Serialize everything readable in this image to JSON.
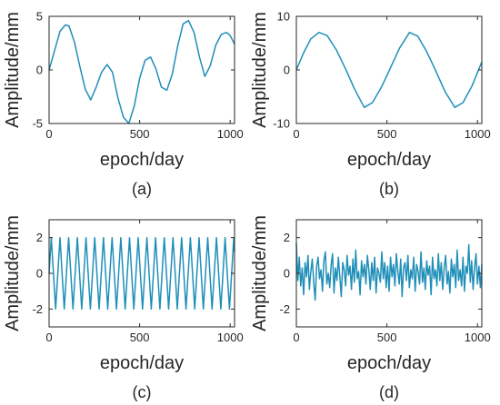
{
  "colors": {
    "series": "#1f8fb8",
    "axis": "#262626"
  },
  "chart_data": [
    {
      "type": "line",
      "panel_label": "(a)",
      "xlabel": "epoch/day",
      "ylabel": "Amplitude/mm",
      "xlim": [
        0,
        1024
      ],
      "ylim": [
        -5,
        5
      ],
      "xticks": [
        0,
        500,
        1000
      ],
      "yticks": [
        -5,
        0,
        5
      ],
      "grid": false,
      "series": [
        {
          "x": [
            0,
            30,
            60,
            90,
            110,
            140,
            170,
            200,
            230,
            260,
            290,
            320,
            350,
            380,
            410,
            440,
            470,
            500,
            530,
            560,
            590,
            620,
            650,
            680,
            710,
            740,
            770,
            800,
            830,
            860,
            890,
            920,
            950,
            980,
            1000,
            1024
          ],
          "y": [
            0,
            1.8,
            3.6,
            4.2,
            4.1,
            2.6,
            0.3,
            -1.8,
            -2.8,
            -1.6,
            -0.2,
            0.5,
            -0.2,
            -2.6,
            -4.4,
            -5.0,
            -3.4,
            -0.8,
            0.9,
            1.2,
            0.1,
            -1.6,
            -1.9,
            -0.4,
            2.2,
            4.3,
            4.6,
            3.5,
            1.2,
            -0.6,
            0.4,
            2.3,
            3.3,
            3.5,
            3.2,
            2.4
          ]
        }
      ]
    },
    {
      "type": "line",
      "panel_label": "(b)",
      "xlabel": "epoch/day",
      "ylabel": "Amplitude/mm",
      "xlim": [
        0,
        1024
      ],
      "ylim": [
        -10,
        10
      ],
      "xticks": [
        0,
        500,
        1000
      ],
      "yticks": [
        -10,
        0,
        10
      ],
      "grid": false,
      "series": [
        {
          "x": [
            0,
            40,
            80,
            125,
            170,
            220,
            270,
            320,
            375,
            420,
            470,
            520,
            570,
            625,
            670,
            720,
            770,
            820,
            875,
            920,
            970,
            1024
          ],
          "y": [
            0,
            3.2,
            5.8,
            7.0,
            6.4,
            3.8,
            0.3,
            -3.5,
            -7.0,
            -6.1,
            -3.2,
            0.4,
            4.1,
            7.0,
            6.3,
            3.4,
            -0.2,
            -4.0,
            -7.0,
            -6.1,
            -3.0,
            1.5
          ]
        }
      ]
    },
    {
      "type": "line",
      "panel_label": "(c)",
      "xlabel": "epoch/day",
      "ylabel": "Amplitude/mm",
      "xlim": [
        0,
        1024
      ],
      "ylim": [
        -3,
        3
      ],
      "xticks": [
        0,
        500,
        1000
      ],
      "yticks": [
        -2,
        0,
        2
      ],
      "grid": false,
      "series": [
        {
          "x": [
            0,
            12,
            24,
            36,
            48,
            60,
            72,
            84,
            96,
            108,
            120,
            132,
            144,
            156,
            168,
            180,
            192,
            204,
            216,
            228,
            240,
            252,
            264,
            276,
            288,
            300,
            312,
            324,
            336,
            348,
            360,
            372,
            384,
            396,
            408,
            420,
            432,
            444,
            456,
            468,
            480,
            492,
            504,
            516,
            528,
            540,
            552,
            564,
            576,
            588,
            600,
            612,
            624,
            636,
            648,
            660,
            672,
            684,
            696,
            708,
            720,
            732,
            744,
            756,
            768,
            780,
            792,
            804,
            816,
            828,
            840,
            852,
            864,
            876,
            888,
            900,
            912,
            924,
            936,
            948,
            960,
            972,
            984,
            996,
            1008,
            1020,
            1024
          ],
          "y": [
            0,
            2,
            0,
            -2,
            0,
            2,
            0,
            -2,
            0,
            2,
            0,
            -2,
            0,
            2,
            0,
            -2,
            0,
            2,
            0,
            -2,
            0,
            2,
            0,
            -2,
            0,
            2,
            0,
            -2,
            0,
            2,
            0,
            -2,
            0,
            2,
            0,
            -2,
            0,
            2,
            0,
            -2,
            0,
            2,
            0,
            -2,
            0,
            2,
            0,
            -2,
            0,
            2,
            0,
            -2,
            0,
            2,
            0,
            -2,
            0,
            2,
            0,
            -2,
            0,
            2,
            0,
            -2,
            0,
            2,
            0,
            -2,
            0,
            2,
            0,
            -2,
            0,
            2,
            0,
            -2,
            0,
            2,
            0,
            -2,
            0,
            2,
            0,
            -2,
            0,
            2,
            1.2
          ]
        }
      ]
    },
    {
      "type": "line",
      "panel_label": "(d)",
      "xlabel": "epoch/day",
      "ylabel": "Amplitude/mm",
      "xlim": [
        0,
        1024
      ],
      "ylim": [
        -3,
        3
      ],
      "xticks": [
        0,
        500,
        1000
      ],
      "yticks": [
        -2,
        0,
        2
      ],
      "grid": false,
      "series": [
        {
          "x": [
            0,
            8,
            16,
            24,
            32,
            40,
            48,
            56,
            64,
            72,
            80,
            88,
            96,
            104,
            112,
            120,
            128,
            136,
            144,
            152,
            160,
            168,
            176,
            184,
            192,
            200,
            208,
            216,
            224,
            232,
            240,
            248,
            256,
            264,
            272,
            280,
            288,
            296,
            304,
            312,
            320,
            328,
            336,
            344,
            352,
            360,
            368,
            376,
            384,
            392,
            400,
            408,
            416,
            424,
            432,
            440,
            448,
            456,
            464,
            472,
            480,
            488,
            496,
            504,
            512,
            520,
            528,
            536,
            544,
            552,
            560,
            568,
            576,
            584,
            592,
            600,
            608,
            616,
            624,
            632,
            640,
            648,
            656,
            664,
            672,
            680,
            688,
            696,
            704,
            712,
            720,
            728,
            736,
            744,
            752,
            760,
            768,
            776,
            784,
            792,
            800,
            808,
            816,
            824,
            832,
            840,
            848,
            856,
            864,
            872,
            880,
            888,
            896,
            904,
            912,
            920,
            928,
            936,
            944,
            952,
            960,
            968,
            976,
            984,
            992,
            1000,
            1008,
            1016,
            1024
          ],
          "y": [
            1.7,
            -0.4,
            0.9,
            -0.7,
            0.3,
            -1.2,
            0.6,
            -0.2,
            1.0,
            -0.9,
            0.1,
            0.8,
            -0.5,
            -1.5,
            0.4,
            0.9,
            -0.3,
            0.2,
            -1.0,
            0.7,
            1.2,
            -0.6,
            0.0,
            -0.8,
            0.5,
            1.1,
            -1.1,
            0.3,
            -0.4,
            0.9,
            -0.2,
            -1.3,
            0.6,
            0.2,
            -0.7,
            1.0,
            -0.1,
            0.4,
            -0.9,
            0.8,
            -0.5,
            1.3,
            -0.3,
            0.1,
            -1.2,
            0.7,
            -0.2,
            0.5,
            -0.6,
            1.0,
            0.2,
            -0.9,
            0.6,
            -0.4,
            0.9,
            -1.1,
            0.3,
            0.0,
            -0.5,
            1.2,
            -0.3,
            0.6,
            -0.8,
            0.4,
            -1.0,
            0.9,
            -0.2,
            0.5,
            -0.7,
            1.1,
            0.1,
            -0.6,
            0.8,
            -1.3,
            0.3,
            0.6,
            -0.4,
            1.0,
            -0.8,
            0.2,
            -0.3,
            0.9,
            -1.0,
            0.5,
            0.1,
            -0.6,
            1.2,
            -0.5,
            0.3,
            -0.9,
            0.7,
            -0.1,
            0.4,
            -1.2,
            0.9,
            -0.3,
            0.2,
            -0.7,
            1.1,
            -0.4,
            0.6,
            -0.9,
            0.3,
            1.0,
            -0.6,
            0.1,
            -1.1,
            0.8,
            -0.2,
            0.5,
            -0.8,
            1.3,
            -0.4,
            0.2,
            -0.7,
            0.9,
            -1.0,
            0.4,
            0.0,
            1.6,
            -0.5,
            0.7,
            -0.9,
            0.3,
            1.1,
            -0.6,
            0.4,
            -0.8,
            0.5
          ]
        }
      ]
    }
  ]
}
